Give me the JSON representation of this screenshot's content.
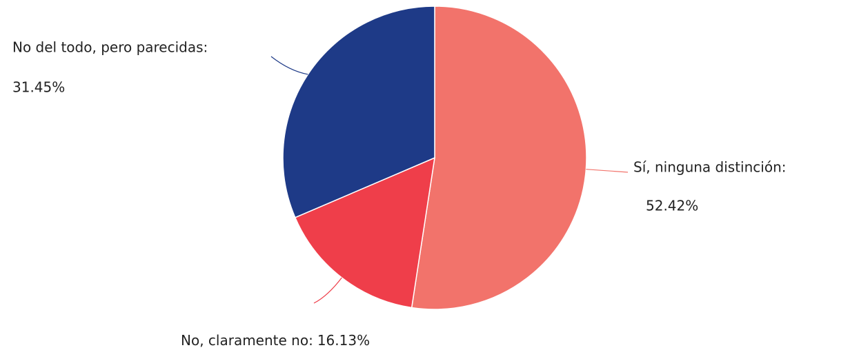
{
  "chart_data": {
    "type": "pie",
    "categories": [
      "Sí, ninguna distinción:",
      "No, claramente no:",
      "No del todo, pero parecidas:"
    ],
    "values": [
      52.42,
      16.13,
      31.45
    ],
    "value_labels": [
      "52.42%",
      "16.13%",
      "31.45%"
    ],
    "colors": [
      "#f2736b",
      "#ef3e4a",
      "#1e3a87"
    ]
  }
}
